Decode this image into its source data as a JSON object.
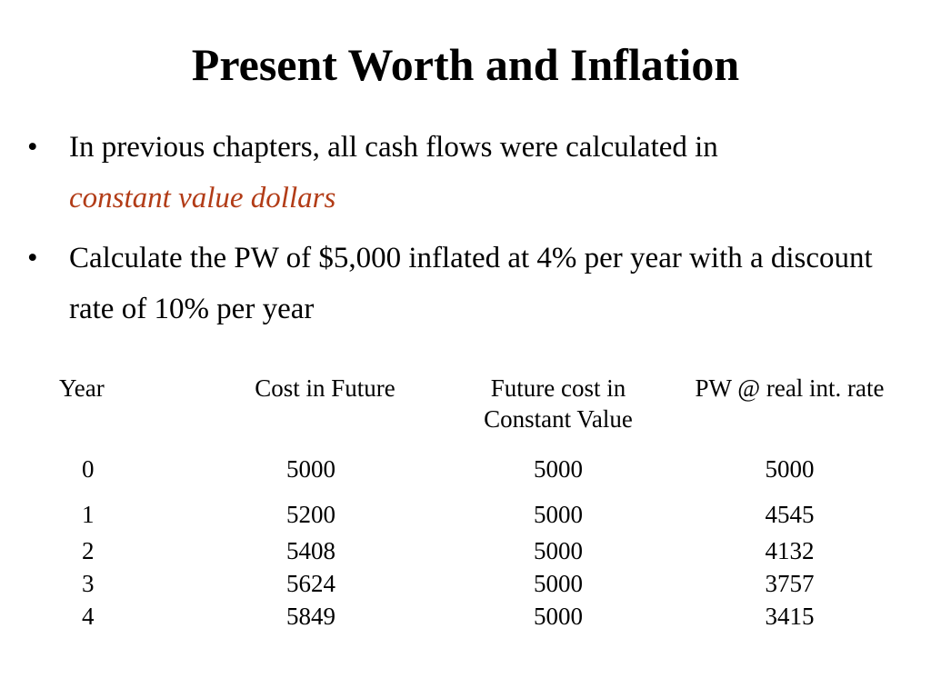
{
  "slide": {
    "title": "Present Worth and Inflation",
    "bullets": [
      {
        "text": "In previous chapters, all cash flows were calculated in",
        "emphasis": "constant value dollars"
      },
      {
        "text": "Calculate the PW of $5,000 inflated at 4% per year with a discount rate of 10% per year"
      }
    ],
    "bullet_glyph": "•",
    "emphasis_color": "#b23c17"
  },
  "table": {
    "headers": [
      "Year",
      "Cost in Future",
      "Future cost in Constant Value",
      "PW @ real int. rate"
    ],
    "rows": [
      [
        "0",
        "5000",
        "5000",
        "5000"
      ],
      [
        "1",
        "5200",
        "5000",
        "4545"
      ],
      [
        "2",
        "5408",
        "5000",
        "4132"
      ],
      [
        "3",
        "5624",
        "5000",
        "3757"
      ],
      [
        "4",
        "5849",
        "5000",
        "3415"
      ]
    ]
  }
}
